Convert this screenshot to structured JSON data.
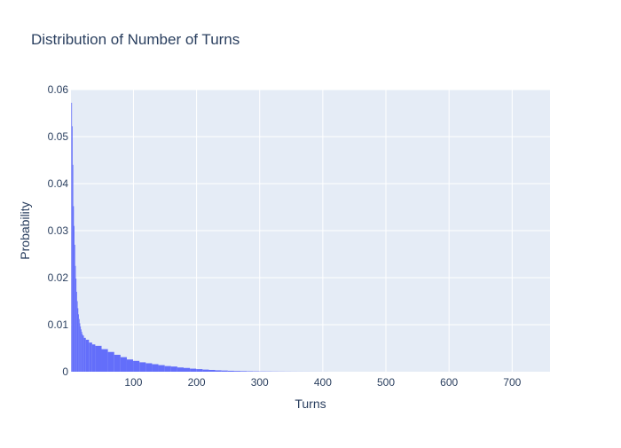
{
  "chart_data": {
    "type": "bar",
    "title": "Distribution of Number of Turns",
    "xlabel": "Turns",
    "ylabel": "Probability",
    "xlim": [
      1,
      760
    ],
    "ylim": [
      0,
      0.06
    ],
    "xticks": [
      100,
      200,
      300,
      400,
      500,
      600,
      700
    ],
    "xtick_labels": [
      "100",
      "200",
      "300",
      "400",
      "500",
      "600",
      "700"
    ],
    "yticks": [
      0,
      0.01,
      0.02,
      0.03,
      0.04,
      0.05,
      0.06
    ],
    "ytick_labels": [
      "0",
      "0.01",
      "0.02",
      "0.03",
      "0.04",
      "0.05",
      "0.06"
    ],
    "grid": true,
    "bar_color": "#636efa",
    "plot_bgcolor": "#e5ecf6",
    "series": [
      {
        "x": [
          2,
          3,
          4,
          5,
          6,
          7,
          8,
          9,
          10,
          11,
          12,
          13,
          14,
          15,
          16,
          17,
          18,
          19,
          20,
          22,
          25,
          30,
          35,
          40,
          50,
          60,
          70,
          80,
          90,
          100,
          110,
          120,
          130,
          140,
          150,
          160,
          170,
          180,
          190,
          200,
          210,
          220,
          230,
          240,
          250,
          260,
          270,
          280,
          290,
          300,
          310,
          320,
          330,
          340,
          350,
          360,
          370,
          380,
          390,
          400
        ],
        "values": [
          0.0572,
          0.0522,
          0.044,
          0.0352,
          0.031,
          0.027,
          0.0225,
          0.0198,
          0.017,
          0.015,
          0.0135,
          0.0122,
          0.0112,
          0.0103,
          0.0096,
          0.009,
          0.0085,
          0.008,
          0.0077,
          0.0072,
          0.0068,
          0.0062,
          0.0058,
          0.0055,
          0.0048,
          0.0042,
          0.0036,
          0.0031,
          0.0026,
          0.0023,
          0.002,
          0.0018,
          0.0016,
          0.0014,
          0.0012,
          0.0011,
          0.0009,
          0.0008,
          0.00065,
          0.00055,
          0.00045,
          0.00038,
          0.0003,
          0.00025,
          0.0002,
          0.00016,
          0.00013,
          0.0001,
          8e-05,
          6e-05,
          5e-05,
          4e-05,
          3.2e-05,
          2.5e-05,
          2e-05,
          1.6e-05,
          1.2e-05,
          1e-05,
          8e-06,
          6e-06
        ]
      }
    ]
  }
}
